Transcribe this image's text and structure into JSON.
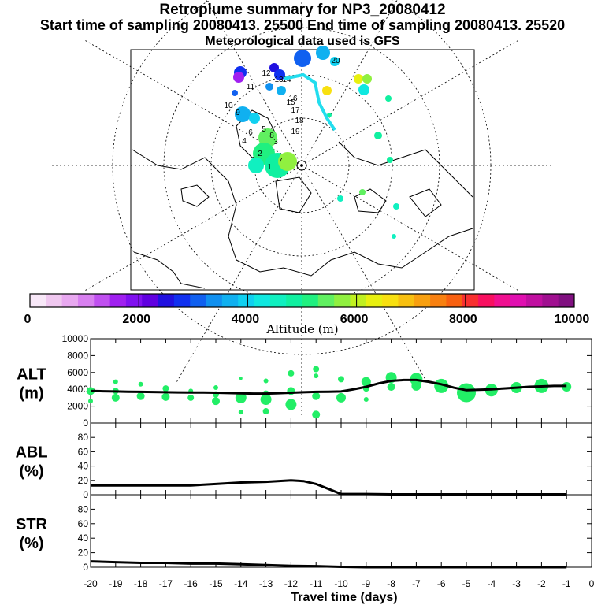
{
  "header": {
    "title": "Retroplume summary for NP3_20080412",
    "sampling": "Start time of sampling 20080413. 25500     End time of sampling 20080413. 25520",
    "met": "Meteorological data used is GFS"
  },
  "colorbar": {
    "label": "Altitude (m)",
    "tick_labels": [
      "0",
      "2000",
      "4000",
      "6000",
      "8000",
      "10000"
    ],
    "colors": [
      "#f8e8f8",
      "#f0c8f0",
      "#e8a8f0",
      "#d880f0",
      "#c050f0",
      "#a020f0",
      "#8010f0",
      "#6000e0",
      "#2010e0",
      "#1030f0",
      "#1060f0",
      "#1090f0",
      "#10b0f0",
      "#10d0f0",
      "#10e8e0",
      "#10f0c0",
      "#10f0a0",
      "#20f080",
      "#60f060",
      "#90f040",
      "#c0f020",
      "#e8f010",
      "#f8e010",
      "#f8c010",
      "#f8a010",
      "#f88010",
      "#f86010",
      "#f83030",
      "#f81060",
      "#f01090",
      "#e010b0",
      "#c010a0",
      "#a01090",
      "#801080"
    ]
  },
  "map": {
    "labels": [
      "1",
      "2",
      "3",
      "4",
      "5",
      "6",
      "7",
      "8",
      "9",
      "10",
      "11",
      "12",
      "13",
      "14",
      "15",
      "16",
      "17",
      "18",
      "19",
      "20"
    ],
    "region_note": "Arctic polar stereographic projection"
  },
  "chart_data": [
    {
      "type": "line",
      "panel": "ALT",
      "ylabel": "ALT\n(m)",
      "ylim": [
        0,
        10000
      ],
      "yticks": [
        0,
        2000,
        4000,
        6000,
        8000,
        10000
      ],
      "x": [
        -20,
        -19.5,
        -19,
        -18.5,
        -18,
        -17.5,
        -17,
        -16.5,
        -16,
        -15.5,
        -15,
        -14.5,
        -14,
        -13.5,
        -13,
        -12.5,
        -12,
        -11.5,
        -11,
        -10.5,
        -10,
        -9.5,
        -9,
        -8.5,
        -8,
        -7.5,
        -7,
        -6.5,
        -6,
        -5.5,
        -5,
        -4.5,
        -4,
        -3.5,
        -3,
        -2.5,
        -2,
        -1.5,
        -1
      ],
      "values": [
        3800,
        3780,
        3750,
        3720,
        3700,
        3680,
        3650,
        3640,
        3630,
        3620,
        3600,
        3560,
        3520,
        3500,
        3500,
        3540,
        3600,
        3650,
        3700,
        3720,
        3750,
        4000,
        4300,
        4700,
        5000,
        5100,
        5100,
        4900,
        4600,
        4200,
        3900,
        3950,
        4000,
        4100,
        4200,
        4300,
        4350,
        4400,
        4400
      ],
      "plume_dots": [
        {
          "x": -20,
          "alt": [
            3800,
            2600
          ],
          "r": [
            5,
            3
          ]
        },
        {
          "x": -19,
          "alt": [
            4900,
            3000,
            3800
          ],
          "r": [
            3,
            5,
            4
          ]
        },
        {
          "x": -18,
          "alt": [
            4600,
            3200
          ],
          "r": [
            3,
            5
          ]
        },
        {
          "x": -17,
          "alt": [
            4100,
            3100
          ],
          "r": [
            4,
            5
          ]
        },
        {
          "x": -16,
          "alt": [
            3800,
            3000
          ],
          "r": [
            3,
            4
          ]
        },
        {
          "x": -15,
          "alt": [
            4200,
            3400,
            2600
          ],
          "r": [
            3,
            4,
            5
          ]
        },
        {
          "x": -14,
          "alt": [
            5300,
            3000,
            1300
          ],
          "r": [
            2,
            7,
            3
          ]
        },
        {
          "x": -13,
          "alt": [
            5000,
            3400,
            2800,
            1400
          ],
          "r": [
            3,
            5,
            7,
            4
          ]
        },
        {
          "x": -12,
          "alt": [
            5900,
            3800,
            2200
          ],
          "r": [
            4,
            5,
            7
          ]
        },
        {
          "x": -11,
          "alt": [
            6400,
            5600,
            3200,
            1000
          ],
          "r": [
            4,
            3,
            5,
            5
          ]
        },
        {
          "x": -10,
          "alt": [
            5200,
            3000
          ],
          "r": [
            4,
            6
          ]
        },
        {
          "x": -9,
          "alt": [
            4900,
            4100,
            2800
          ],
          "r": [
            6,
            4,
            3
          ]
        },
        {
          "x": -8,
          "alt": [
            5400,
            4300
          ],
          "r": [
            7,
            5
          ]
        },
        {
          "x": -7,
          "alt": [
            5200,
            4400
          ],
          "r": [
            8,
            6
          ]
        },
        {
          "x": -6,
          "alt": [
            4400
          ],
          "r": [
            9
          ]
        },
        {
          "x": -5,
          "alt": [
            3600
          ],
          "r": [
            12
          ]
        },
        {
          "x": -4,
          "alt": [
            3900
          ],
          "r": [
            8
          ]
        },
        {
          "x": -3,
          "alt": [
            4200
          ],
          "r": [
            7
          ]
        },
        {
          "x": -2,
          "alt": [
            4400
          ],
          "r": [
            9
          ]
        },
        {
          "x": -1,
          "alt": [
            4300
          ],
          "r": [
            6
          ]
        }
      ]
    },
    {
      "type": "line",
      "panel": "ABL",
      "ylabel": "ABL\n(%)",
      "ylim": [
        0,
        100
      ],
      "yticks": [
        0,
        20,
        40,
        60,
        80
      ],
      "x": [
        -20,
        -19,
        -18,
        -17,
        -16,
        -15,
        -14,
        -13,
        -12,
        -11.5,
        -11,
        -10.5,
        -10,
        -9,
        -8,
        -7,
        -6,
        -5,
        -4,
        -3,
        -2,
        -1
      ],
      "values": [
        13,
        13,
        13,
        13,
        13,
        15,
        17,
        18,
        20,
        19,
        15,
        8,
        1,
        1,
        0.5,
        0.5,
        0.5,
        0.5,
        0.5,
        0.5,
        0.5,
        0.5
      ]
    },
    {
      "type": "line",
      "panel": "STR",
      "ylabel": "STR\n(%)",
      "ylim": [
        0,
        100
      ],
      "yticks": [
        0,
        20,
        40,
        60,
        80
      ],
      "x": [
        -20,
        -19,
        -18,
        -17,
        -16,
        -15,
        -14,
        -13,
        -12,
        -11,
        -10,
        -9,
        -8,
        -7,
        -6,
        -5,
        -4,
        -3,
        -2,
        -1
      ],
      "values": [
        8,
        7,
        6,
        6,
        5,
        5,
        4,
        3,
        2,
        1.5,
        0.5,
        0,
        0,
        0,
        0,
        0,
        0,
        0,
        0,
        0
      ]
    }
  ],
  "xaxis": {
    "label": "Travel time (days)",
    "tick_labels": [
      "-20",
      "-19",
      "-18",
      "-17",
      "-16",
      "-15",
      "-14",
      "-13",
      "-12",
      "-11",
      "-10",
      "-9",
      "-8",
      "-7",
      "-6",
      "-5",
      "-4",
      "-3",
      "-2",
      "-1",
      "0"
    ]
  },
  "styles": {
    "plume_color": "#22ee66",
    "track_color": "#000000",
    "map_track_color": "#22ddee"
  }
}
